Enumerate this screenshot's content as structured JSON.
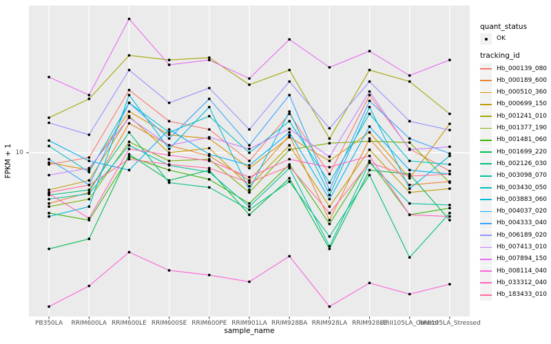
{
  "figure": {
    "background": "#FFFFFF",
    "panel_background": "#EBEBEB",
    "gridline_color": "#FFFFFF",
    "tick_color": "#333333",
    "tick_label_color": "#4D4D4D",
    "point_color": "#000000"
  },
  "axes": {
    "x_title": "sample_name",
    "y_title": "FPKM + 1",
    "y_scale": "log10",
    "y_ticks": [
      {
        "label": "10",
        "value": 10
      }
    ]
  },
  "legend": {
    "quant_status": {
      "title": "quant_status",
      "items": [
        {
          "label": "OK",
          "marker": "black-point"
        }
      ]
    },
    "tracking_id_title": "tracking_id"
  },
  "chart_data": {
    "type": "line",
    "title": "",
    "xlabel": "sample_name",
    "ylabel": "FPKM + 1",
    "yscale": "log10",
    "ylim": [
      1.2,
      68
    ],
    "grid": true,
    "legend_position": "right",
    "marker": "point (quant_status = OK)",
    "categories": [
      "PB350LA",
      "RRIM600LA",
      "RRIM600LE",
      "RRIM600SE",
      "RRIM600PE",
      "RRIM901LA",
      "RRIM928BA",
      "RRIM928LA",
      "RRIM928LE",
      "RRII105LA_Control",
      "RRII105LA_Stressed"
    ],
    "series": [
      {
        "name": "Hb_000139_080",
        "color": "#F8766D",
        "values": [
          8.6,
          9.4,
          22.4,
          15,
          13.5,
          9,
          16.5,
          7.6,
          21,
          10.5,
          7.9
        ]
      },
      {
        "name": "Hb_000189_600",
        "color": "#EA8331",
        "values": [
          5.2,
          6,
          14.6,
          11,
          9.6,
          7,
          12.5,
          4.2,
          12,
          6.6,
          6.9
        ]
      },
      {
        "name": "Hb_000510_360",
        "color": "#D89000",
        "values": [
          8.8,
          8,
          17,
          12.6,
          12,
          8.2,
          12.2,
          9,
          13,
          7.2,
          14.5
        ]
      },
      {
        "name": "Hb_000699_150",
        "color": "#C09B00",
        "values": [
          6.2,
          7,
          16,
          10,
          10.6,
          6.5,
          11,
          5,
          10.4,
          6,
          6.3
        ]
      },
      {
        "name": "Hb_001241_010",
        "color": "#A3A500",
        "values": [
          15.7,
          20,
          35,
          33,
          34,
          24,
          29,
          12,
          29,
          25,
          16.5
        ]
      },
      {
        "name": "Hb_001377_190",
        "color": "#7CAE00",
        "values": [
          5,
          5.5,
          11.5,
          9,
          9.2,
          6,
          10.4,
          11.3,
          11.6,
          11.4,
          6.8
        ]
      },
      {
        "name": "Hb_001481_060",
        "color": "#39B600",
        "values": [
          4.6,
          4.2,
          9.5,
          8,
          7.1,
          5.2,
          8.6,
          4,
          9,
          4.5,
          4.9
        ]
      },
      {
        "name": "Hb_001699_220",
        "color": "#00BB4E",
        "values": [
          2.9,
          3.3,
          9.8,
          7,
          8,
          4.5,
          7.2,
          2.9,
          8,
          7.6,
          4.2
        ]
      },
      {
        "name": "Hb_002126_030",
        "color": "#00BF7D",
        "values": [
          5.8,
          6.2,
          13,
          6.8,
          6.4,
          4.8,
          6.9,
          3.4,
          7.5,
          2.6,
          4.6
        ]
      },
      {
        "name": "Hb_003098_070",
        "color": "#00C1A3",
        "values": [
          5.5,
          5.9,
          11,
          8.5,
          7.8,
          5,
          8.2,
          3,
          8.8,
          5.2,
          5.1
        ]
      },
      {
        "name": "Hb_003430_050",
        "color": "#00BFC4",
        "values": [
          10.9,
          7.8,
          19,
          13,
          16,
          10,
          15,
          6.8,
          16.5,
          9,
          8.6
        ]
      },
      {
        "name": "Hb_003883_060",
        "color": "#00BAE0",
        "values": [
          4.4,
          5,
          21,
          10.5,
          18,
          6.2,
          17,
          5.8,
          18,
          6.3,
          9.6
        ]
      },
      {
        "name": "Hb_004037_020",
        "color": "#00B0F6",
        "values": [
          11.7,
          9,
          8,
          13.5,
          9.8,
          8.5,
          13,
          5.5,
          14,
          8,
          7.6
        ]
      },
      {
        "name": "Hb_004333_040",
        "color": "#35A2FF",
        "values": [
          9.2,
          6.6,
          19,
          12,
          20,
          11,
          21,
          6.2,
          19.5,
          12,
          9.9
        ]
      },
      {
        "name": "Hb_006189_020",
        "color": "#9590FF",
        "values": [
          14.7,
          12.6,
          29,
          19,
          23,
          13.5,
          25,
          13.7,
          25,
          15,
          13.4
        ]
      },
      {
        "name": "Hb_007413_010",
        "color": "#C77CFF",
        "values": [
          7.5,
          8.2,
          15.7,
          11,
          12.2,
          10.5,
          13.6,
          9.5,
          22,
          10.4,
          10.8
        ]
      },
      {
        "name": "Hb_007894_150",
        "color": "#E76BF3",
        "values": [
          26.5,
          21,
          56,
          31,
          33,
          26,
          43,
          30,
          37,
          27,
          33
        ]
      },
      {
        "name": "Hb_008114_040",
        "color": "#FA62DB",
        "values": [
          1.38,
          1.8,
          2.78,
          2.2,
          2.07,
          1.9,
          2.64,
          1.38,
          1.87,
          1.62,
          1.84
        ]
      },
      {
        "name": "Hb_033312_040",
        "color": "#FF62BC",
        "values": [
          5.9,
          4.3,
          10.5,
          9.7,
          9,
          7.3,
          9.2,
          8.3,
          9.6,
          4.5,
          4.4
        ]
      },
      {
        "name": "Hb_183433_010",
        "color": "#FF6A98",
        "values": [
          6,
          6.6,
          9.2,
          8.6,
          8.2,
          6.8,
          8.4,
          4.6,
          8.8,
          7.4,
          7.6
        ]
      }
    ]
  }
}
